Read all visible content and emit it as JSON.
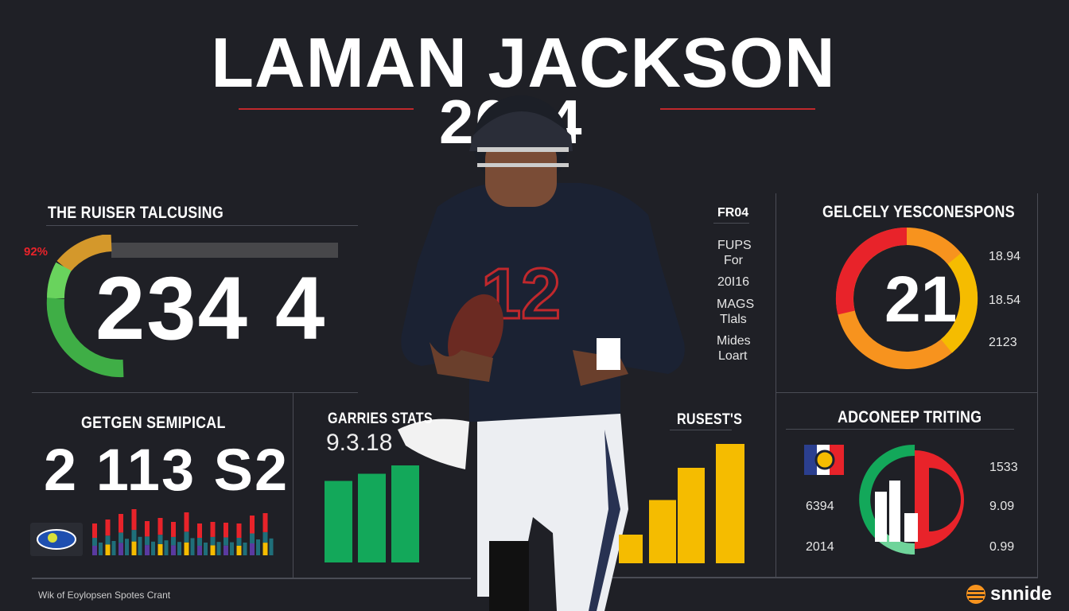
{
  "header": {
    "title": "LAMAN JACKSON",
    "year": "2024"
  },
  "panel_top_left": {
    "heading": "THE RUISER TALCUSING",
    "percent_label": "92%",
    "gauge_percent": 92,
    "big_number": "234 4"
  },
  "panel_bottom_left": {
    "heading": "GETGEN SEMIPICAL",
    "numbers": "2 113 S2"
  },
  "panel_carries": {
    "heading": "GARRIES STATS",
    "value": "9.3.18",
    "bars": [
      0.69,
      0.75,
      0.82
    ]
  },
  "side_labels": {
    "heading": "FR04",
    "items": [
      "FUPS",
      "For",
      "20I16",
      "MAGS",
      "Tlals",
      "Mides",
      "Loart"
    ]
  },
  "panel_top_right": {
    "heading": "GELCELY YESCONESPONS",
    "center_value": "21",
    "values": [
      "18.94",
      "18.54",
      "2123"
    ]
  },
  "panel_rushes": {
    "heading": "RUSEST'S",
    "bars": [
      0.24,
      0.53,
      0.8,
      1.0
    ]
  },
  "panel_bottom_right": {
    "heading": "ADCONEEP TRITING",
    "left_values": [
      "6394",
      "2014"
    ],
    "right_values": [
      "1533",
      "9.09",
      "0.99"
    ]
  },
  "footer": {
    "caption": "Wik of Eoylopsen Spotes Crant",
    "brand": "snnide"
  },
  "colors": {
    "background": "#1f2026",
    "red": "#e8232a",
    "green": "#13a85a",
    "yellow": "#f5bc00",
    "orange": "#f7931e"
  }
}
